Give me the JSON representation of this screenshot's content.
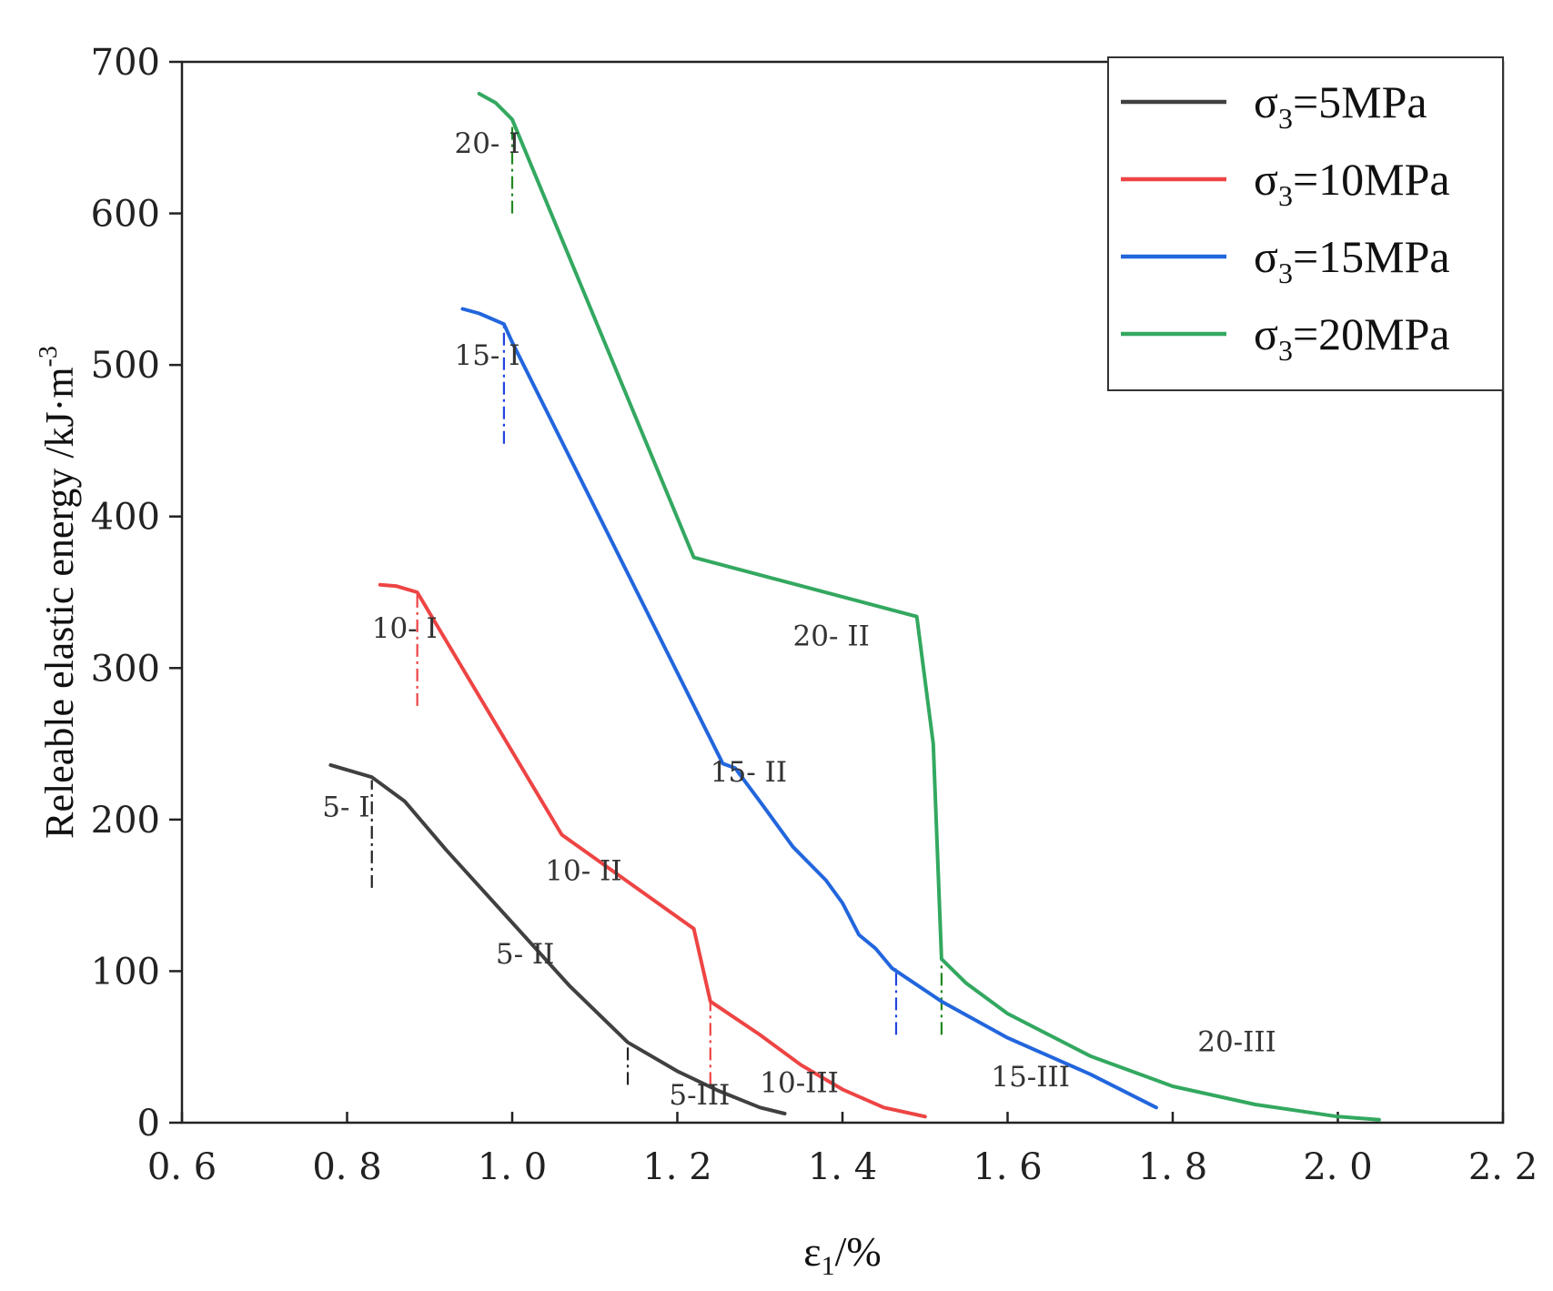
{
  "chart_data": {
    "type": "line",
    "xlabel": {
      "main": "ε",
      "sub": "1",
      "rest": "/%"
    },
    "ylabel": "Releable elastic energy /kJ·m",
    "ylabel_sup": "-3",
    "xlim": [
      0.6,
      2.2
    ],
    "ylim": [
      0,
      700
    ],
    "xticks": [
      0.6,
      0.8,
      1.0,
      1.2,
      1.4,
      1.6,
      1.8,
      2.0,
      2.2
    ],
    "xtick_labels": [
      "0. 6",
      "0. 8",
      "1. 0",
      "1. 2",
      "1. 4",
      "1. 6",
      "1. 8",
      "2. 0",
      "2. 2"
    ],
    "yticks": [
      0,
      100,
      200,
      300,
      400,
      500,
      600,
      700
    ],
    "ytick_labels": [
      "0",
      "100",
      "200",
      "300",
      "400",
      "500",
      "600",
      "700"
    ],
    "legend_position": "top-right",
    "series": [
      {
        "name": "σ3=5MPa",
        "legend": {
          "pre": "σ",
          "sub": "3",
          "post": "=5MPa"
        },
        "color": "#404040",
        "points": [
          [
            0.78,
            236
          ],
          [
            0.83,
            228
          ],
          [
            0.87,
            212
          ],
          [
            0.92,
            180
          ],
          [
            1.0,
            132
          ],
          [
            1.07,
            90
          ],
          [
            1.14,
            53
          ],
          [
            1.2,
            34
          ],
          [
            1.25,
            21
          ],
          [
            1.3,
            10
          ],
          [
            1.33,
            6
          ]
        ]
      },
      {
        "name": "σ3=10MPa",
        "legend": {
          "pre": "σ",
          "sub": "3",
          "post": "=10MPa"
        },
        "color": "#ee4444",
        "points": [
          [
            0.84,
            355
          ],
          [
            0.86,
            354
          ],
          [
            0.885,
            350
          ],
          [
            1.06,
            190
          ],
          [
            1.22,
            128
          ],
          [
            1.24,
            80
          ],
          [
            1.3,
            58
          ],
          [
            1.35,
            38
          ],
          [
            1.4,
            22
          ],
          [
            1.45,
            10
          ],
          [
            1.5,
            4
          ]
        ]
      },
      {
        "name": "σ3=15MPa",
        "legend": {
          "pre": "σ",
          "sub": "3",
          "post": "=15MPa"
        },
        "color": "#2266dd",
        "points": [
          [
            0.94,
            537
          ],
          [
            0.96,
            534
          ],
          [
            0.99,
            527
          ],
          [
            1.0,
            515
          ],
          [
            1.255,
            237
          ],
          [
            1.27,
            234
          ],
          [
            1.3,
            212
          ],
          [
            1.34,
            182
          ],
          [
            1.38,
            160
          ],
          [
            1.4,
            145
          ],
          [
            1.42,
            124
          ],
          [
            1.44,
            115
          ],
          [
            1.46,
            102
          ],
          [
            1.52,
            80
          ],
          [
            1.6,
            56
          ],
          [
            1.7,
            32
          ],
          [
            1.78,
            10
          ]
        ]
      },
      {
        "name": "σ3=20MPa",
        "legend": {
          "pre": "σ",
          "sub": "3",
          "post": "=20MPa"
        },
        "color": "#33a860",
        "points": [
          [
            0.96,
            679
          ],
          [
            0.98,
            673
          ],
          [
            1.0,
            662
          ],
          [
            1.22,
            373
          ],
          [
            1.49,
            334
          ],
          [
            1.51,
            250
          ],
          [
            1.52,
            108
          ],
          [
            1.55,
            92
          ],
          [
            1.6,
            72
          ],
          [
            1.7,
            44
          ],
          [
            1.8,
            24
          ],
          [
            1.9,
            12
          ],
          [
            2.0,
            4
          ],
          [
            2.05,
            2
          ]
        ]
      }
    ],
    "boundary_lines": [
      {
        "x": 0.83,
        "y1": 155,
        "y2": 226,
        "color": "#222222"
      },
      {
        "x": 1.14,
        "y1": 25,
        "y2": 53,
        "color": "#222222"
      },
      {
        "x": 0.885,
        "y1": 275,
        "y2": 350,
        "color": "#ee4444"
      },
      {
        "x": 1.24,
        "y1": 25,
        "y2": 80,
        "color": "#ee4444"
      },
      {
        "x": 0.99,
        "y1": 448,
        "y2": 527,
        "color": "#2244dd"
      },
      {
        "x": 1.465,
        "y1": 58,
        "y2": 102,
        "color": "#2244dd"
      },
      {
        "x": 1.0,
        "y1": 600,
        "y2": 662,
        "color": "#228822"
      },
      {
        "x": 1.52,
        "y1": 58,
        "y2": 108,
        "color": "#228822"
      }
    ],
    "annotations": [
      {
        "text": "5- I",
        "x": 0.77,
        "y": 202
      },
      {
        "text": "5- II",
        "x": 0.98,
        "y": 105
      },
      {
        "text": "5-III",
        "x": 1.19,
        "y": 12
      },
      {
        "text": "10- I",
        "x": 0.83,
        "y": 320
      },
      {
        "text": "10- II",
        "x": 1.04,
        "y": 160
      },
      {
        "text": "10-III",
        "x": 1.3,
        "y": 20
      },
      {
        "text": "15- I",
        "x": 0.93,
        "y": 500
      },
      {
        "text": "15- II",
        "x": 1.24,
        "y": 225
      },
      {
        "text": "15-III",
        "x": 1.58,
        "y": 24
      },
      {
        "text": "20- I",
        "x": 0.93,
        "y": 640
      },
      {
        "text": "20- II",
        "x": 1.34,
        "y": 315
      },
      {
        "text": "20-III",
        "x": 1.83,
        "y": 47
      }
    ]
  }
}
